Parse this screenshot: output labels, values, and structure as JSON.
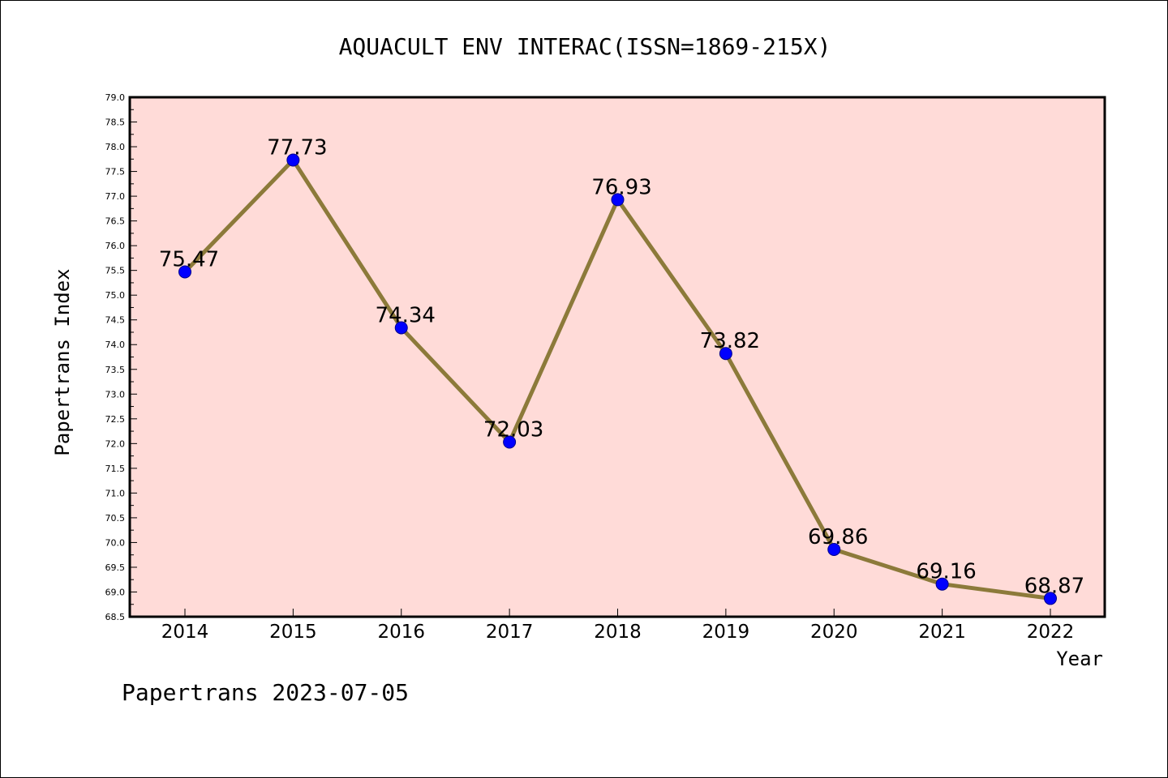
{
  "chart_data": {
    "type": "line",
    "title": "AQUACULT ENV INTERAC(ISSN=1869-215X)",
    "xlabel": "Year",
    "ylabel": "Papertrans Index",
    "categories": [
      "2014",
      "2015",
      "2016",
      "2017",
      "2018",
      "2019",
      "2020",
      "2021",
      "2022"
    ],
    "values": [
      75.47,
      77.73,
      74.34,
      72.03,
      76.93,
      73.82,
      69.86,
      69.16,
      68.87
    ],
    "data_labels": [
      "75.47",
      "77.73",
      "74.34",
      "72.03",
      "76.93",
      "73.82",
      "69.86",
      "69.16",
      "68.87"
    ],
    "ylim": [
      68.5,
      79.0
    ],
    "ytick_step": 0.5,
    "yticks": [
      "68.5",
      "69.0",
      "69.5",
      "70.0",
      "70.5",
      "71.0",
      "71.5",
      "72.0",
      "72.5",
      "73.0",
      "73.5",
      "74.0",
      "74.5",
      "75.0",
      "75.5",
      "76.0",
      "76.5",
      "77.0",
      "77.5",
      "78.0",
      "78.5",
      "79.0"
    ],
    "grid": false,
    "legend": "none",
    "colors": {
      "plot_background": "#ffdbd8",
      "line": "#8c7a3a",
      "marker": "#0000ff",
      "marker_edge": "#00008b"
    }
  },
  "footer": "Papertrans 2023-07-05"
}
